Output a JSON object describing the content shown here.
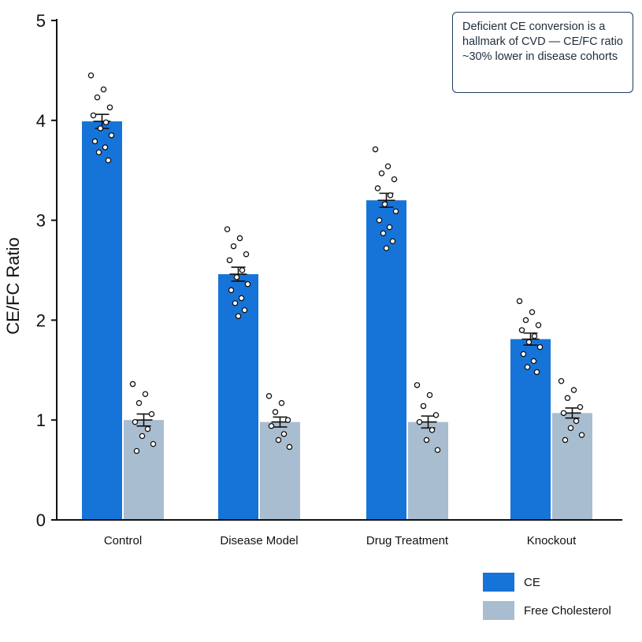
{
  "colors": {
    "ce": "#1674d8",
    "fc": "#a9bdd0",
    "axis": "#111111",
    "annotation_border": "#1f3a5f"
  },
  "annotation": {
    "text": "Deficient CE conversion is a hallmark of CVD — CE/FC ratio ~30% lower in disease cohorts"
  },
  "chart_data": {
    "type": "bar",
    "title": "",
    "xlabel": "",
    "ylabel": "CE/FC Ratio",
    "ylim": [
      0,
      5
    ],
    "yticks": [
      "0",
      "1",
      "2",
      "3",
      "4",
      "5"
    ],
    "grid": false,
    "legend_position": "bottom-right",
    "categories": [
      "Control",
      "Disease Model",
      "Drug Treatment",
      "Knockout"
    ],
    "series": [
      {
        "name": "CE",
        "values": [
          3.99,
          2.46,
          3.2,
          1.81
        ],
        "errors": [
          0.07,
          0.07,
          0.07,
          0.06
        ],
        "points": [
          [
            4.45,
            4.31,
            4.23,
            4.13,
            4.05,
            3.98,
            3.92,
            3.85,
            3.79,
            3.73,
            3.68,
            3.6
          ],
          [
            2.91,
            2.82,
            2.74,
            2.66,
            2.6,
            2.5,
            2.43,
            2.36,
            2.3,
            2.22,
            2.17,
            2.1,
            2.04
          ],
          [
            3.71,
            3.54,
            3.47,
            3.41,
            3.32,
            3.25,
            3.16,
            3.09,
            3.0,
            2.93,
            2.87,
            2.79,
            2.72
          ],
          [
            2.19,
            2.08,
            2.0,
            1.95,
            1.9,
            1.84,
            1.78,
            1.73,
            1.66,
            1.59,
            1.53,
            1.48
          ]
        ]
      },
      {
        "name": "Free Cholesterol",
        "values": [
          1.0,
          0.98,
          0.98,
          1.07
        ],
        "errors": [
          0.06,
          0.05,
          0.06,
          0.05
        ],
        "points": [
          [
            1.36,
            1.26,
            1.17,
            1.06,
            0.98,
            0.91,
            0.84,
            0.76,
            0.69
          ],
          [
            1.24,
            1.17,
            1.08,
            1.0,
            0.94,
            0.86,
            0.8,
            0.73
          ],
          [
            1.35,
            1.25,
            1.14,
            1.05,
            0.98,
            0.9,
            0.8,
            0.7
          ],
          [
            1.39,
            1.3,
            1.22,
            1.13,
            1.07,
            0.99,
            0.92,
            0.85,
            0.8
          ]
        ]
      }
    ]
  }
}
